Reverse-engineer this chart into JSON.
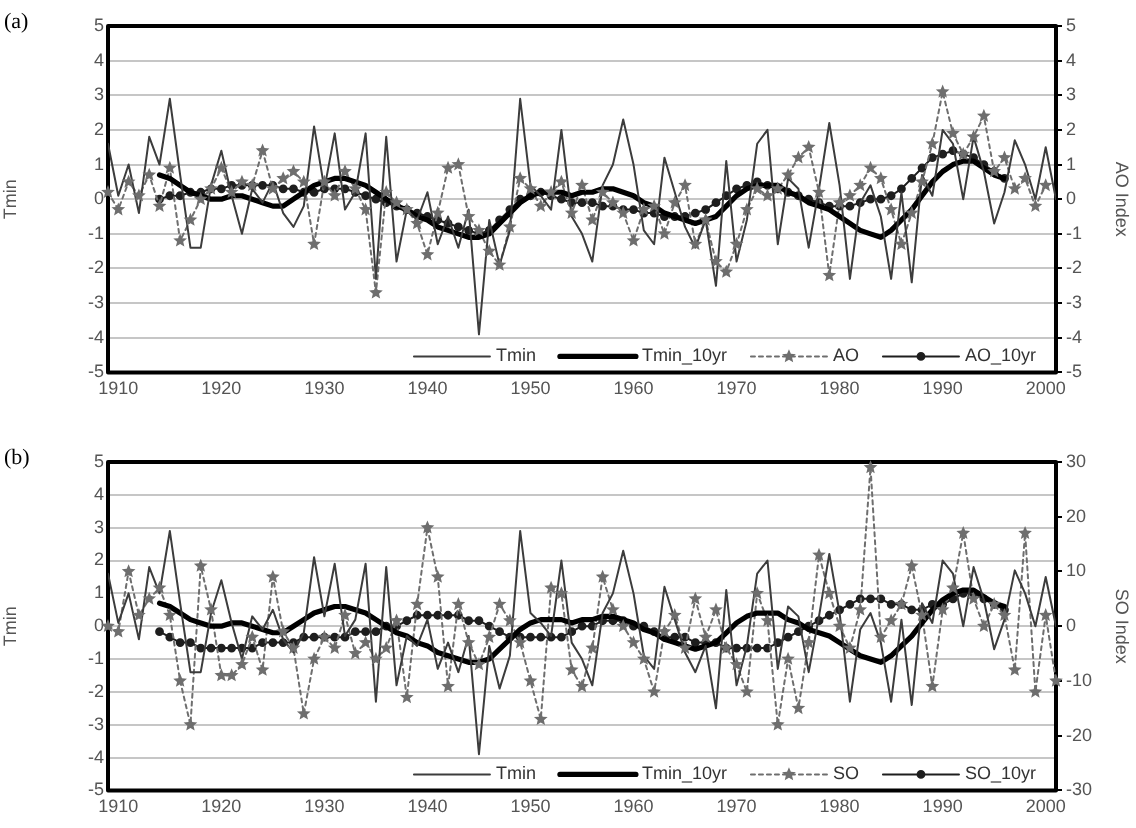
{
  "chart_data": [
    {
      "type": "line",
      "title": "(a)",
      "ylabel": "Tmin",
      "y2label": "AO Index",
      "x": [
        1909,
        1910,
        1911,
        1912,
        1913,
        1914,
        1915,
        1916,
        1917,
        1918,
        1919,
        1920,
        1921,
        1922,
        1923,
        1924,
        1925,
        1926,
        1927,
        1928,
        1929,
        1930,
        1931,
        1932,
        1933,
        1934,
        1935,
        1936,
        1937,
        1938,
        1939,
        1940,
        1941,
        1942,
        1943,
        1944,
        1945,
        1946,
        1947,
        1948,
        1949,
        1950,
        1951,
        1952,
        1953,
        1954,
        1955,
        1956,
        1957,
        1958,
        1959,
        1960,
        1961,
        1962,
        1963,
        1964,
        1965,
        1966,
        1967,
        1968,
        1969,
        1970,
        1971,
        1972,
        1973,
        1974,
        1975,
        1976,
        1977,
        1978,
        1979,
        1980,
        1981,
        1982,
        1983,
        1984,
        1985,
        1986,
        1987,
        1988,
        1989,
        1990,
        1991,
        1992,
        1993,
        1994,
        1995,
        1996,
        1997,
        1998,
        1999,
        2000,
        2001
      ],
      "xlim": [
        1909,
        2001
      ],
      "xticks": [
        1910,
        1920,
        1930,
        1940,
        1950,
        1960,
        1970,
        1980,
        1990,
        2000
      ],
      "ylim": [
        -5,
        5
      ],
      "yticks": [
        -5,
        -4,
        -3,
        -2,
        -1,
        0,
        1,
        2,
        3,
        4,
        5
      ],
      "y2lim": [
        -5,
        5
      ],
      "y2ticks": [
        -5,
        -4,
        -3,
        -2,
        -1,
        0,
        1,
        2,
        3,
        4,
        5
      ],
      "grid": "y",
      "legend": "bottom right",
      "series": [
        {
          "name": "Tmin",
          "color": "#3c3c3c",
          "line_style": "solid",
          "marker": "none",
          "values": [
            1.6,
            0.1,
            1.0,
            -0.4,
            1.8,
            1.0,
            2.9,
            0.7,
            -1.4,
            -1.4,
            0.4,
            1.4,
            0.1,
            -1.0,
            0.3,
            -0.1,
            0.5,
            -0.4,
            -0.8,
            -0.2,
            2.1,
            0.3,
            1.9,
            -0.3,
            0.2,
            1.9,
            -2.3,
            1.8,
            -1.8,
            -0.3,
            -0.6,
            0.2,
            -1.3,
            -0.5,
            -1.4,
            -0.3,
            -3.9,
            -0.6,
            -1.9,
            -0.9,
            2.9,
            0.4,
            0.1,
            -0.3,
            2.0,
            -0.5,
            -1.0,
            -1.8,
            0.4,
            1.0,
            2.3,
            1.0,
            -0.9,
            -1.3,
            1.2,
            0.2,
            -0.8,
            -1.4,
            -0.6,
            -2.5,
            1.1,
            -1.8,
            -0.6,
            1.6,
            2.0,
            -1.3,
            0.6,
            0.3,
            -1.4,
            0.3,
            2.2,
            0.4,
            -2.3,
            -0.1,
            0.4,
            -0.5,
            -2.3,
            0.2,
            -2.4,
            0.7,
            0.1,
            2.0,
            1.6,
            0.0,
            1.8,
            0.8,
            -0.7,
            0.2,
            1.7,
            1.0,
            0.0,
            1.5,
            0.0
          ]
        },
        {
          "name": "Tmin_10yr",
          "color": "#000000",
          "line_style": "solid",
          "marker": "none",
          "values": [
            null,
            null,
            null,
            null,
            null,
            0.7,
            0.6,
            0.4,
            0.2,
            0.1,
            0.0,
            0.0,
            0.1,
            0.1,
            0.0,
            -0.1,
            -0.2,
            -0.2,
            0.0,
            0.2,
            0.4,
            0.5,
            0.6,
            0.6,
            0.5,
            0.4,
            0.2,
            0.0,
            -0.2,
            -0.3,
            -0.5,
            -0.6,
            -0.8,
            -0.9,
            -1.0,
            -1.1,
            -1.1,
            -1.0,
            -0.7,
            -0.4,
            -0.1,
            0.1,
            0.2,
            0.2,
            0.2,
            0.1,
            0.2,
            0.2,
            0.3,
            0.3,
            0.2,
            0.1,
            -0.1,
            -0.2,
            -0.4,
            -0.5,
            -0.6,
            -0.7,
            -0.6,
            -0.5,
            -0.2,
            0.1,
            0.3,
            0.4,
            0.4,
            0.4,
            0.2,
            0.1,
            -0.1,
            -0.2,
            -0.3,
            -0.5,
            -0.7,
            -0.9,
            -1.0,
            -1.1,
            -0.9,
            -0.6,
            -0.3,
            0.1,
            0.5,
            0.8,
            1.0,
            1.1,
            1.1,
            0.9,
            0.7,
            0.6,
            null,
            null,
            null,
            null,
            null
          ]
        },
        {
          "name": "AO",
          "color": "#6e6e6e",
          "axis": "y2",
          "line_style": "dotted",
          "marker": "star",
          "values": [
            0.2,
            -0.3,
            0.5,
            0.1,
            0.7,
            -0.2,
            0.9,
            -1.2,
            -0.6,
            0.0,
            0.3,
            0.9,
            0.2,
            0.5,
            0.4,
            1.4,
            0.3,
            0.6,
            0.8,
            0.5,
            -1.3,
            0.5,
            0.1,
            0.8,
            0.3,
            -0.3,
            -2.7,
            0.2,
            -0.1,
            -0.3,
            -0.7,
            -1.6,
            -0.4,
            0.9,
            1.0,
            -0.5,
            -0.9,
            -1.5,
            -1.9,
            -0.8,
            0.6,
            0.3,
            -0.2,
            0.2,
            0.5,
            -0.4,
            0.4,
            -0.6,
            0.2,
            -0.1,
            -0.4,
            -1.2,
            -0.3,
            -0.2,
            -1.0,
            -0.1,
            0.4,
            -1.3,
            -0.6,
            -1.8,
            -2.1,
            -1.3,
            -0.3,
            0.3,
            0.1,
            0.3,
            0.7,
            1.2,
            1.5,
            0.2,
            -2.2,
            -0.1,
            0.1,
            0.4,
            0.9,
            0.6,
            -0.3,
            -1.3,
            -0.4,
            0.5,
            1.6,
            3.1,
            1.9,
            1.3,
            1.8,
            2.4,
            0.8,
            1.2,
            0.3,
            0.6,
            -0.2,
            0.4,
            null
          ]
        },
        {
          "name": "AO_10yr",
          "color": "#1e1e1e",
          "axis": "y2",
          "line_style": "solid",
          "marker": "circle",
          "values": [
            null,
            null,
            null,
            null,
            null,
            0.0,
            0.1,
            0.1,
            0.2,
            0.2,
            0.3,
            0.3,
            0.4,
            0.4,
            0.4,
            0.4,
            0.4,
            0.3,
            0.3,
            0.2,
            0.2,
            0.3,
            0.3,
            0.3,
            0.2,
            0.1,
            0.0,
            -0.1,
            -0.2,
            -0.3,
            -0.4,
            -0.5,
            -0.6,
            -0.7,
            -0.8,
            -0.9,
            -1.0,
            -0.9,
            -0.6,
            -0.3,
            0.0,
            0.1,
            0.2,
            0.1,
            0.0,
            -0.1,
            -0.1,
            -0.1,
            -0.2,
            -0.2,
            -0.3,
            -0.3,
            -0.4,
            -0.4,
            -0.5,
            -0.5,
            -0.5,
            -0.4,
            -0.3,
            -0.1,
            0.1,
            0.3,
            0.4,
            0.5,
            0.4,
            0.3,
            0.2,
            0.1,
            0.0,
            -0.1,
            -0.2,
            -0.2,
            -0.2,
            -0.1,
            0.0,
            0.0,
            0.1,
            0.3,
            0.6,
            0.9,
            1.2,
            1.3,
            1.4,
            1.3,
            1.2,
            1.0,
            0.8,
            0.6,
            null,
            null,
            null,
            null,
            null
          ]
        }
      ]
    },
    {
      "type": "line",
      "title": "(b)",
      "ylabel": "Tmin",
      "y2label": "SO Index",
      "x": [
        1909,
        1910,
        1911,
        1912,
        1913,
        1914,
        1915,
        1916,
        1917,
        1918,
        1919,
        1920,
        1921,
        1922,
        1923,
        1924,
        1925,
        1926,
        1927,
        1928,
        1929,
        1930,
        1931,
        1932,
        1933,
        1934,
        1935,
        1936,
        1937,
        1938,
        1939,
        1940,
        1941,
        1942,
        1943,
        1944,
        1945,
        1946,
        1947,
        1948,
        1949,
        1950,
        1951,
        1952,
        1953,
        1954,
        1955,
        1956,
        1957,
        1958,
        1959,
        1960,
        1961,
        1962,
        1963,
        1964,
        1965,
        1966,
        1967,
        1968,
        1969,
        1970,
        1971,
        1972,
        1973,
        1974,
        1975,
        1976,
        1977,
        1978,
        1979,
        1980,
        1981,
        1982,
        1983,
        1984,
        1985,
        1986,
        1987,
        1988,
        1989,
        1990,
        1991,
        1992,
        1993,
        1994,
        1995,
        1996,
        1997,
        1998,
        1999,
        2000,
        2001
      ],
      "xlim": [
        1909,
        2001
      ],
      "xticks": [
        1910,
        1920,
        1930,
        1940,
        1950,
        1960,
        1970,
        1980,
        1990,
        2000
      ],
      "ylim": [
        -5,
        5
      ],
      "yticks": [
        -5,
        -4,
        -3,
        -2,
        -1,
        0,
        1,
        2,
        3,
        4,
        5
      ],
      "y2lim": [
        -30,
        30
      ],
      "y2ticks": [
        -30,
        -20,
        -10,
        0,
        10,
        20,
        30
      ],
      "grid": "y",
      "legend": "bottom right",
      "series": [
        {
          "name": "Tmin",
          "color": "#3c3c3c",
          "line_style": "solid",
          "marker": "none",
          "values": [
            1.6,
            0.1,
            1.0,
            -0.4,
            1.8,
            1.0,
            2.9,
            0.7,
            -1.4,
            -1.4,
            0.4,
            1.4,
            0.1,
            -1.0,
            0.3,
            -0.1,
            0.5,
            -0.4,
            -0.8,
            -0.2,
            2.1,
            0.3,
            1.9,
            -0.3,
            0.2,
            1.9,
            -2.3,
            1.8,
            -1.8,
            -0.3,
            -0.6,
            0.2,
            -1.3,
            -0.5,
            -1.4,
            -0.3,
            -3.9,
            -0.6,
            -1.9,
            -0.9,
            2.9,
            0.4,
            0.1,
            -0.3,
            2.0,
            -0.5,
            -1.0,
            -1.8,
            0.4,
            1.0,
            2.3,
            1.0,
            -0.9,
            -1.3,
            1.2,
            0.2,
            -0.8,
            -1.4,
            -0.6,
            -2.5,
            1.1,
            -1.8,
            -0.6,
            1.6,
            2.0,
            -1.3,
            0.6,
            0.3,
            -1.4,
            0.3,
            2.2,
            0.4,
            -2.3,
            -0.1,
            0.4,
            -0.5,
            -2.3,
            0.2,
            -2.4,
            0.7,
            0.1,
            2.0,
            1.6,
            0.0,
            1.8,
            0.8,
            -0.7,
            0.2,
            1.7,
            1.0,
            0.0,
            1.5,
            0.0
          ]
        },
        {
          "name": "Tmin_10yr",
          "color": "#000000",
          "line_style": "solid",
          "marker": "none",
          "values": [
            null,
            null,
            null,
            null,
            null,
            0.7,
            0.6,
            0.4,
            0.2,
            0.1,
            0.0,
            0.0,
            0.1,
            0.1,
            0.0,
            -0.1,
            -0.2,
            -0.2,
            0.0,
            0.2,
            0.4,
            0.5,
            0.6,
            0.6,
            0.5,
            0.4,
            0.2,
            0.0,
            -0.2,
            -0.3,
            -0.5,
            -0.6,
            -0.8,
            -0.9,
            -1.0,
            -1.1,
            -1.1,
            -1.0,
            -0.7,
            -0.4,
            -0.1,
            0.1,
            0.2,
            0.2,
            0.2,
            0.1,
            0.2,
            0.2,
            0.3,
            0.3,
            0.2,
            0.1,
            -0.1,
            -0.2,
            -0.4,
            -0.5,
            -0.6,
            -0.7,
            -0.6,
            -0.5,
            -0.2,
            0.1,
            0.3,
            0.4,
            0.4,
            0.4,
            0.2,
            0.1,
            -0.1,
            -0.2,
            -0.3,
            -0.5,
            -0.7,
            -0.9,
            -1.0,
            -1.1,
            -0.9,
            -0.6,
            -0.3,
            0.1,
            0.5,
            0.8,
            1.0,
            1.1,
            1.1,
            0.9,
            0.7,
            0.6,
            null,
            null,
            null,
            null,
            null
          ]
        },
        {
          "name": "SO",
          "color": "#6e6e6e",
          "axis": "y2",
          "line_style": "dotted",
          "marker": "star",
          "values": [
            0,
            -1,
            10,
            2,
            5,
            7,
            2,
            -10,
            -18,
            11,
            3,
            -9,
            -9,
            -7,
            -2,
            -8,
            9,
            -1,
            -4,
            -16,
            -6,
            -2,
            -4,
            2,
            -5,
            -3,
            -6,
            -4,
            1,
            -13,
            4,
            18,
            9,
            -11,
            4,
            -3,
            -7,
            -2,
            4,
            1,
            -3,
            -10,
            -17,
            7,
            6,
            -8,
            -11,
            -4,
            9,
            3,
            0,
            -3,
            -6,
            -12,
            -1,
            2,
            -4,
            5,
            -2,
            3,
            -4,
            -7,
            -12,
            6,
            1,
            -18,
            -6,
            -15,
            -3,
            13,
            6,
            0,
            -4,
            3,
            29,
            -2,
            1,
            4,
            11,
            2,
            -11,
            3,
            7,
            17,
            5,
            0,
            4,
            2,
            -8,
            17,
            -12,
            2,
            -10
          ]
        },
        {
          "name": "SO_10yr",
          "color": "#1e1e1e",
          "axis": "y2",
          "line_style": "solid",
          "marker": "circle",
          "values": [
            null,
            null,
            null,
            null,
            null,
            -1,
            -2,
            -3,
            -3,
            -4,
            -4,
            -4,
            -4,
            -4,
            -4,
            -3,
            -3,
            -3,
            -3,
            -2,
            -2,
            -2,
            -2,
            -2,
            -1,
            -1,
            -1,
            0,
            0,
            1,
            2,
            2,
            2,
            2,
            2,
            1,
            1,
            0,
            -1,
            -2,
            -2,
            -2,
            -2,
            -2,
            -2,
            -1,
            0,
            0,
            1,
            1,
            1,
            0,
            0,
            -1,
            -2,
            -2,
            -2,
            -3,
            -3,
            -3,
            -4,
            -4,
            -4,
            -4,
            -4,
            -3,
            -2,
            -1,
            0,
            1,
            2,
            3,
            4,
            5,
            5,
            5,
            4,
            4,
            3,
            3,
            4,
            4,
            5,
            6,
            6,
            5,
            4,
            3,
            null,
            null,
            null,
            null,
            null
          ]
        }
      ]
    }
  ]
}
